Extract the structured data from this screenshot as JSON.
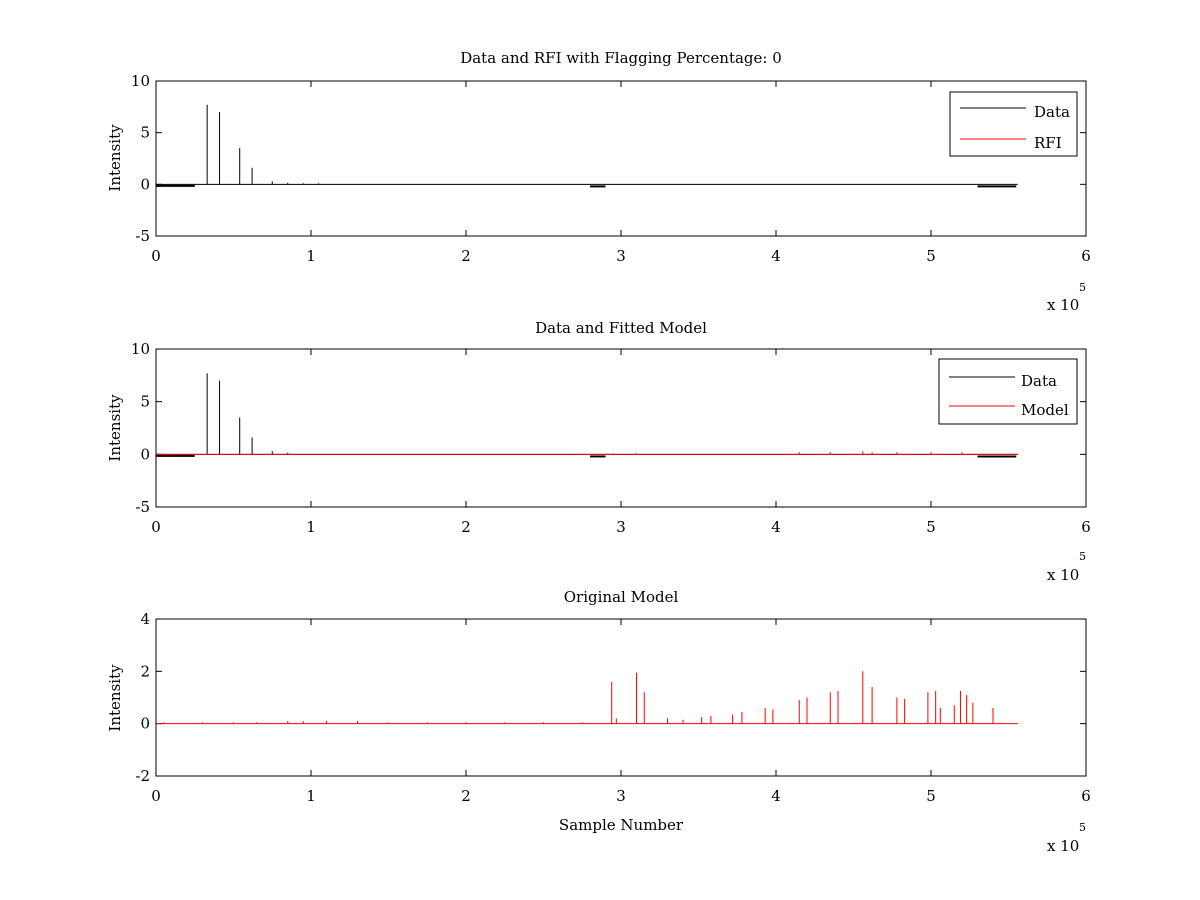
{
  "chart_data": [
    {
      "type": "line",
      "title": "Data and RFI with Flagging Percentage: 0",
      "xlabel": "",
      "ylabel": "Intensity",
      "xlim": [
        0,
        600000
      ],
      "ylim": [
        -5,
        10
      ],
      "x_ticks": [
        "0",
        "1",
        "2",
        "3",
        "4",
        "5",
        "6"
      ],
      "y_ticks": [
        "-5",
        "0",
        "5",
        "10"
      ],
      "x_exponent": "x 10",
      "x_exponent_power": "5",
      "legend": {
        "position": "top-right",
        "entries": [
          "Data",
          "RFI"
        ]
      },
      "grid": false,
      "series": [
        {
          "name": "Data",
          "color": "#000000",
          "baseline": 0,
          "noise_segments": [
            {
              "x": [
                0,
                25000
              ],
              "y": -0.15
            },
            {
              "x": [
                280000,
                290000
              ],
              "y": -0.2
            },
            {
              "x": [
                530000,
                555000
              ],
              "y": -0.2
            }
          ],
          "spikes": [
            {
              "x": 33000,
              "y": 7.7
            },
            {
              "x": 41000,
              "y": 7.0
            },
            {
              "x": 54000,
              "y": 3.5
            },
            {
              "x": 62000,
              "y": 1.6
            },
            {
              "x": 75000,
              "y": 0.3
            },
            {
              "x": 85000,
              "y": 0.15
            },
            {
              "x": 95000,
              "y": 0.1
            },
            {
              "x": 105000,
              "y": 0.1
            }
          ],
          "x_end": 556000
        },
        {
          "name": "RFI",
          "color": "#ff0000",
          "spikes": []
        }
      ]
    },
    {
      "type": "line",
      "title": "Data and Fitted Model",
      "xlabel": "",
      "ylabel": "Intensity",
      "xlim": [
        0,
        600000
      ],
      "ylim": [
        -5,
        10
      ],
      "x_ticks": [
        "0",
        "1",
        "2",
        "3",
        "4",
        "5",
        "6"
      ],
      "y_ticks": [
        "-5",
        "0",
        "5",
        "10"
      ],
      "x_exponent": "x 10",
      "x_exponent_power": "5",
      "legend": {
        "position": "top-right",
        "entries": [
          "Data",
          "Model"
        ]
      },
      "grid": false,
      "series": [
        {
          "name": "Data",
          "color": "#000000",
          "baseline": 0,
          "noise_segments": [
            {
              "x": [
                0,
                25000
              ],
              "y": -0.15
            },
            {
              "x": [
                280000,
                290000
              ],
              "y": -0.2
            },
            {
              "x": [
                530000,
                555000
              ],
              "y": -0.2
            }
          ],
          "spikes": [
            {
              "x": 33000,
              "y": 7.7
            },
            {
              "x": 41000,
              "y": 7.0
            },
            {
              "x": 54000,
              "y": 3.5
            },
            {
              "x": 62000,
              "y": 1.6
            },
            {
              "x": 75000,
              "y": 0.3
            },
            {
              "x": 85000,
              "y": 0.15
            }
          ],
          "x_end": 556000
        },
        {
          "name": "Model",
          "color": "#ff0000",
          "baseline": 0,
          "spikes": [
            {
              "x": 295000,
              "y": 0.1
            },
            {
              "x": 310000,
              "y": 0.1
            },
            {
              "x": 415000,
              "y": 0.2
            },
            {
              "x": 435000,
              "y": 0.2
            },
            {
              "x": 456000,
              "y": 0.3
            },
            {
              "x": 462000,
              "y": 0.2
            },
            {
              "x": 478000,
              "y": 0.2
            },
            {
              "x": 500000,
              "y": 0.2
            },
            {
              "x": 520000,
              "y": 0.2
            }
          ],
          "x_end": 556000
        }
      ]
    },
    {
      "type": "line",
      "title": "Original Model",
      "xlabel": "Sample Number",
      "ylabel": "Intensity",
      "xlim": [
        0,
        600000
      ],
      "ylim": [
        -2,
        4
      ],
      "x_ticks": [
        "0",
        "1",
        "2",
        "3",
        "4",
        "5",
        "6"
      ],
      "y_ticks": [
        "-2",
        "0",
        "2",
        "4"
      ],
      "x_exponent": "x 10",
      "x_exponent_power": "5",
      "grid": false,
      "series": [
        {
          "name": "",
          "color": "#ff0000",
          "baseline": 0,
          "spikes": [
            {
              "x": 5000,
              "y": 0.05
            },
            {
              "x": 30000,
              "y": 0.05
            },
            {
              "x": 50000,
              "y": 0.05
            },
            {
              "x": 65000,
              "y": 0.05
            },
            {
              "x": 85000,
              "y": 0.1
            },
            {
              "x": 95000,
              "y": 0.1
            },
            {
              "x": 110000,
              "y": 0.1
            },
            {
              "x": 130000,
              "y": 0.1
            },
            {
              "x": 150000,
              "y": 0.05
            },
            {
              "x": 175000,
              "y": 0.05
            },
            {
              "x": 200000,
              "y": 0.05
            },
            {
              "x": 225000,
              "y": 0.05
            },
            {
              "x": 250000,
              "y": 0.05
            },
            {
              "x": 275000,
              "y": 0.05
            },
            {
              "x": 294000,
              "y": 1.6
            },
            {
              "x": 297000,
              "y": 0.2
            },
            {
              "x": 310000,
              "y": 1.95
            },
            {
              "x": 315000,
              "y": 1.2
            },
            {
              "x": 330000,
              "y": 0.2
            },
            {
              "x": 340000,
              "y": 0.15
            },
            {
              "x": 352000,
              "y": 0.25
            },
            {
              "x": 358000,
              "y": 0.3
            },
            {
              "x": 372000,
              "y": 0.35
            },
            {
              "x": 378000,
              "y": 0.45
            },
            {
              "x": 393000,
              "y": 0.6
            },
            {
              "x": 398000,
              "y": 0.55
            },
            {
              "x": 415000,
              "y": 0.9
            },
            {
              "x": 420000,
              "y": 1.0
            },
            {
              "x": 435000,
              "y": 1.2
            },
            {
              "x": 440000,
              "y": 1.25
            },
            {
              "x": 456000,
              "y": 2.0
            },
            {
              "x": 462000,
              "y": 1.4
            },
            {
              "x": 478000,
              "y": 1.0
            },
            {
              "x": 483000,
              "y": 0.95
            },
            {
              "x": 498000,
              "y": 1.2
            },
            {
              "x": 503000,
              "y": 1.25
            },
            {
              "x": 506000,
              "y": 0.6
            },
            {
              "x": 515000,
              "y": 0.7
            },
            {
              "x": 519000,
              "y": 1.25
            },
            {
              "x": 523000,
              "y": 1.1
            },
            {
              "x": 527000,
              "y": 0.8
            },
            {
              "x": 540000,
              "y": 0.6
            }
          ],
          "x_end": 556000
        }
      ]
    }
  ]
}
